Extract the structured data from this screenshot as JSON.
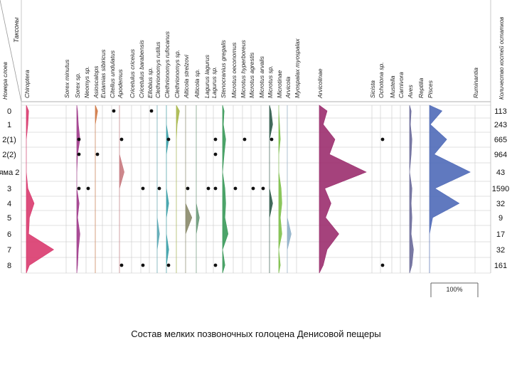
{
  "caption": "Состав мелких позвоночных голоцена Денисовой пещеры",
  "chart_data": {
    "type": "area",
    "header_left": "Таксоны",
    "header_left_sub": "Номера слоев",
    "header_right": "Количество костей остатков",
    "layers": [
      "0",
      "1",
      "2(1)",
      "2(2)",
      "яма 2",
      "3",
      "4",
      "5",
      "6",
      "7",
      "8"
    ],
    "counts": [
      113,
      243,
      665,
      964,
      43,
      1590,
      32,
      9,
      17,
      32,
      161
    ],
    "scale_label": "100%",
    "taxa": [
      {
        "name": "Chiroptera",
        "color": "#d93a6e",
        "values": [
          3,
          2,
          0,
          0,
          0,
          2,
          10,
          4,
          3,
          35,
          4
        ]
      },
      {
        "name": "Sorex minutus",
        "color": "#7f4f9a",
        "values": [
          0,
          0,
          0,
          0,
          0,
          0,
          0,
          0,
          0,
          0,
          0
        ]
      },
      {
        "name": "Sorex sp.",
        "color": "#a13b8c",
        "values": [
          1,
          2,
          4,
          1,
          0,
          0,
          3,
          1,
          4,
          2,
          1
        ]
      },
      {
        "name": "Neomys sp.",
        "color": "#8a4f8f",
        "values": [
          0,
          0,
          0,
          0,
          0,
          0,
          0,
          0,
          0,
          0,
          0
        ]
      },
      {
        "name": "Asioscalops",
        "color": "#d07844",
        "values": [
          3,
          0,
          0,
          0,
          0,
          0,
          0,
          0,
          0,
          0,
          0
        ]
      },
      {
        "name": "Eutamias sibiricus",
        "color": "#555555",
        "values": [
          0,
          0,
          0,
          0,
          0,
          0,
          0,
          0,
          0,
          0,
          0
        ]
      },
      {
        "name": "Citellus undulatus",
        "color": "#7b6a9b",
        "values": [
          0,
          0,
          0,
          0,
          0,
          0,
          0,
          0,
          0,
          0,
          0
        ]
      },
      {
        "name": "Apodemus",
        "color": "#c87a80",
        "values": [
          0,
          0,
          0,
          0,
          6,
          0,
          0,
          0,
          0,
          0,
          0
        ]
      },
      {
        "name": "Cricetulus criceius",
        "color": "#777777",
        "values": [
          0,
          0,
          0,
          0,
          0,
          0,
          0,
          0,
          0,
          0,
          0
        ]
      },
      {
        "name": "Cricetulus barabensis",
        "color": "#777777",
        "values": [
          0,
          0,
          0,
          0,
          0,
          0,
          0,
          0,
          0,
          0,
          0
        ]
      },
      {
        "name": "Ellobius sp.",
        "color": "#777777",
        "values": [
          0,
          0,
          0,
          0,
          0,
          0,
          0,
          0,
          0,
          0,
          0
        ]
      },
      {
        "name": "Clethrionomys rutilus",
        "color": "#5aa8b5",
        "values": [
          0,
          0,
          0,
          0,
          0,
          0,
          0,
          0,
          3,
          0,
          0
        ]
      },
      {
        "name": "Clethrionomys rufocanus",
        "color": "#3aa0a8",
        "values": [
          0,
          0,
          3,
          0,
          0,
          0,
          3,
          0,
          0,
          3,
          0
        ]
      },
      {
        "name": "Clethrionomys sp.",
        "color": "#a8b84a",
        "values": [
          4,
          1,
          0,
          0,
          0,
          0,
          0,
          0,
          0,
          0,
          0
        ]
      },
      {
        "name": "Alticola strelzovi",
        "color": "#8a8a6a",
        "values": [
          0,
          0,
          0,
          0,
          0,
          0,
          0,
          8,
          0,
          0,
          0
        ]
      },
      {
        "name": "Alticola sp.",
        "color": "#6a9a7a",
        "values": [
          0,
          0,
          0,
          0,
          0,
          0,
          0,
          4,
          0,
          0,
          0
        ]
      },
      {
        "name": "Lagurus lagurus",
        "color": "#777777",
        "values": [
          0,
          0,
          0,
          0,
          0,
          0,
          0,
          0,
          0,
          0,
          0
        ]
      },
      {
        "name": "Lagurus sp.",
        "color": "#777777",
        "values": [
          0,
          0,
          0,
          0,
          0,
          0,
          0,
          0,
          0,
          0,
          0
        ]
      },
      {
        "name": "Stenocranius gregalis",
        "color": "#3a9a5a",
        "values": [
          2,
          1,
          4,
          2,
          0,
          3,
          4,
          3,
          7,
          0,
          3
        ]
      },
      {
        "name": "Microtus oeconomus",
        "color": "#777777",
        "values": [
          0,
          0,
          0,
          0,
          0,
          0,
          0,
          0,
          0,
          0,
          0
        ]
      },
      {
        "name": "Microtus hyperboreus",
        "color": "#777777",
        "values": [
          0,
          0,
          0,
          0,
          0,
          0,
          0,
          0,
          0,
          0,
          0
        ]
      },
      {
        "name": "Microtus agrestis",
        "color": "#8a8a8a",
        "values": [
          0,
          0,
          0,
          0,
          0,
          0,
          0,
          0,
          0,
          0,
          0
        ]
      },
      {
        "name": "Microtus arvalis",
        "color": "#999999",
        "values": [
          0,
          0,
          0,
          0,
          0,
          0,
          0,
          0,
          0,
          0,
          0
        ]
      },
      {
        "name": "Microtus sp.",
        "color": "#2f5b4a",
        "values": [
          2,
          4,
          0,
          0,
          0,
          0,
          4,
          0,
          0,
          0,
          0
        ]
      },
      {
        "name": "Microtinae",
        "color": "#7ec04a",
        "values": [
          0,
          1,
          2,
          0,
          0,
          3,
          4,
          2,
          4,
          0,
          2
        ]
      },
      {
        "name": "Arvicola",
        "color": "#8fb0c8",
        "values": [
          0,
          0,
          0,
          0,
          0,
          0,
          0,
          0,
          5,
          0,
          0
        ]
      },
      {
        "name": "Myospalax myospalax",
        "color": "#555555",
        "values": [
          0,
          0,
          0,
          0,
          0,
          0,
          0,
          0,
          0,
          0,
          0
        ]
      },
      {
        "name": "Arvicolinae",
        "color": "#9b2d6e",
        "values": [
          10,
          5,
          20,
          13,
          60,
          7,
          15,
          8,
          25,
          10,
          5
        ]
      },
      {
        "name": "Sicista",
        "color": "#777777",
        "values": [
          0,
          0,
          0,
          0,
          0,
          0,
          0,
          0,
          0,
          0,
          0
        ]
      },
      {
        "name": "Ochotona sp.",
        "color": "#777777",
        "values": [
          0,
          0,
          0,
          0,
          0,
          0,
          0,
          0,
          0,
          0,
          0
        ]
      },
      {
        "name": "Mustella",
        "color": "#777777",
        "values": [
          0,
          0,
          0,
          0,
          0,
          0,
          0,
          0,
          0,
          0,
          0
        ]
      },
      {
        "name": "Carnivora",
        "color": "#777777",
        "values": [
          0,
          0,
          0,
          0,
          0,
          0,
          0,
          0,
          0,
          0,
          0
        ]
      },
      {
        "name": "Aves",
        "color": "#6a6a9a",
        "values": [
          2,
          1,
          3,
          2,
          0,
          3,
          2,
          3,
          2,
          5,
          3
        ]
      },
      {
        "name": "Reptilia",
        "color": "#777777",
        "values": [
          0,
          0,
          0,
          0,
          0,
          0,
          0,
          0,
          0,
          0,
          0
        ]
      },
      {
        "name": "Pisces",
        "color": "#4f6ab8",
        "values": [
          16,
          1,
          22,
          6,
          52,
          7,
          38,
          4,
          0,
          0,
          0
        ]
      },
      {
        "name": "Ruminantia",
        "color": "#777777",
        "values": [
          0,
          0,
          0,
          0,
          0,
          0,
          0,
          0,
          0,
          0,
          0
        ]
      }
    ],
    "dots": [
      {
        "taxon": 6,
        "layer": 0
      },
      {
        "taxon": 10,
        "layer": 0
      },
      {
        "taxon": 2,
        "layer": 2
      },
      {
        "taxon": 7,
        "layer": 2
      },
      {
        "taxon": 12,
        "layer": 2
      },
      {
        "taxon": 17,
        "layer": 2
      },
      {
        "taxon": 20,
        "layer": 2
      },
      {
        "taxon": 23,
        "layer": 2
      },
      {
        "taxon": 29,
        "layer": 2
      },
      {
        "taxon": 2,
        "layer": 3
      },
      {
        "taxon": 4,
        "layer": 3
      },
      {
        "taxon": 17,
        "layer": 3
      },
      {
        "taxon": 2,
        "layer": 5
      },
      {
        "taxon": 3,
        "layer": 5
      },
      {
        "taxon": 9,
        "layer": 5
      },
      {
        "taxon": 11,
        "layer": 5
      },
      {
        "taxon": 14,
        "layer": 5
      },
      {
        "taxon": 16,
        "layer": 5
      },
      {
        "taxon": 17,
        "layer": 5
      },
      {
        "taxon": 19,
        "layer": 5
      },
      {
        "taxon": 21,
        "layer": 5
      },
      {
        "taxon": 22,
        "layer": 5
      },
      {
        "taxon": 7,
        "layer": 10
      },
      {
        "taxon": 9,
        "layer": 10
      },
      {
        "taxon": 12,
        "layer": 10
      },
      {
        "taxon": 17,
        "layer": 10
      },
      {
        "taxon": 29,
        "layer": 10
      }
    ]
  }
}
